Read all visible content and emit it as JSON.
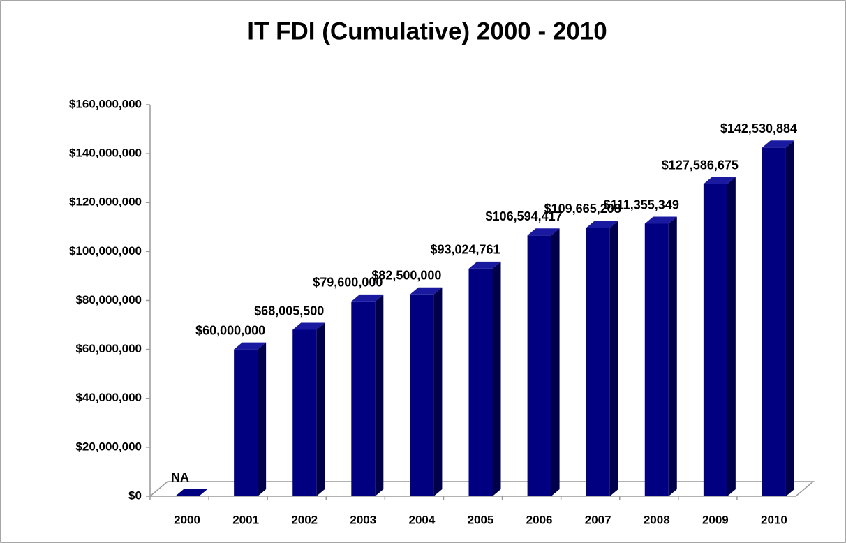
{
  "chart_data": {
    "type": "bar3d",
    "title": "IT FDI (Cumulative) 2000 - 2010",
    "categories": [
      "2000",
      "2001",
      "2002",
      "2003",
      "2004",
      "2005",
      "2006",
      "2007",
      "2008",
      "2009",
      "2010"
    ],
    "values": [
      null,
      60000000,
      68005500,
      79600000,
      82500000,
      93024761,
      106594417,
      109665208,
      111355349,
      127586675,
      142530884
    ],
    "value_labels": [
      "NA",
      "$60,000,000",
      "$68,005,500",
      "$79,600,000",
      "$82,500,000",
      "$93,024,761",
      "$106,594,417",
      "$109,665,208",
      "$111,355,349",
      "$127,586,675",
      "$142,530,884"
    ],
    "color": "#000080",
    "ylim": [
      0,
      160000000
    ],
    "yticks": [
      {
        "value": 0,
        "label": "$0"
      },
      {
        "value": 20000000,
        "label": "$20,000,000"
      },
      {
        "value": 40000000,
        "label": "$40,000,000"
      },
      {
        "value": 60000000,
        "label": "$60,000,000"
      },
      {
        "value": 80000000,
        "label": "$80,000,000"
      },
      {
        "value": 100000000,
        "label": "$100,000,000"
      },
      {
        "value": 120000000,
        "label": "$120,000,000"
      },
      {
        "value": 140000000,
        "label": "$140,000,000"
      },
      {
        "value": 160000000,
        "label": "$160,000,000"
      }
    ]
  }
}
